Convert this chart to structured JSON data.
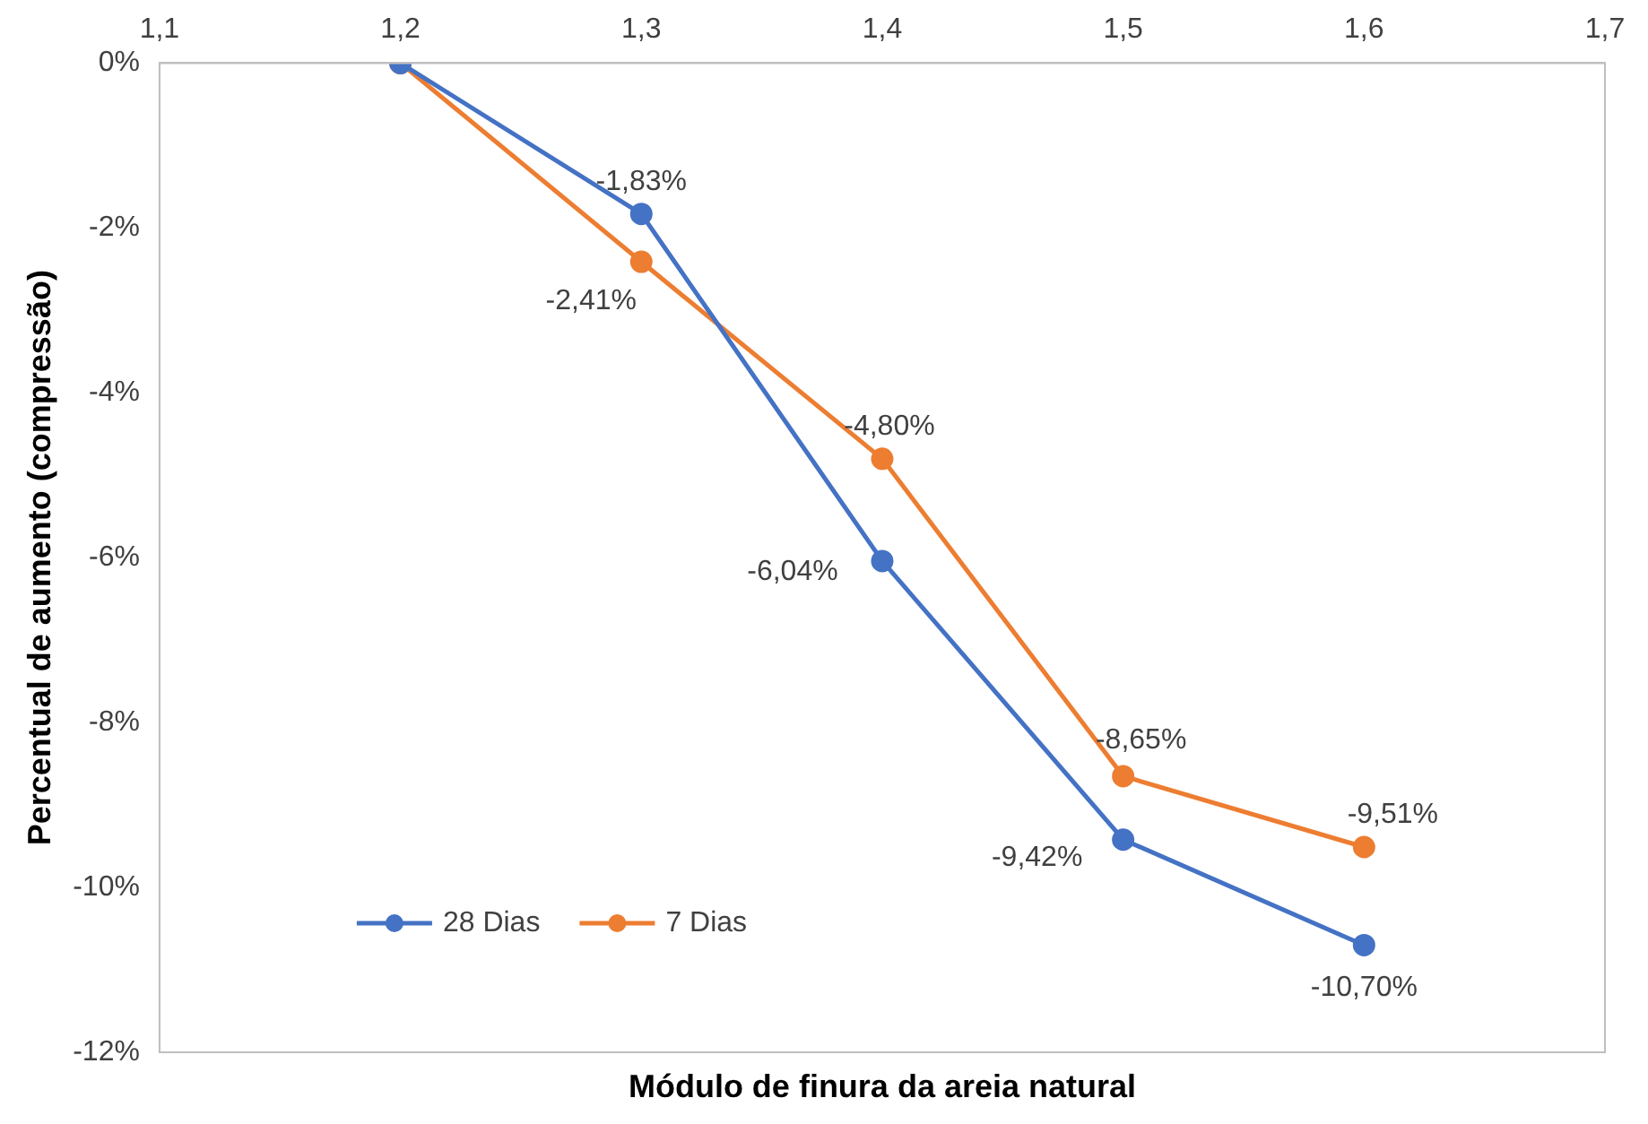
{
  "chart_data": {
    "type": "line",
    "xlabel": "Módulo de finura da areia natural",
    "ylabel": "Percentual de aumento (compressão)",
    "x": [
      1.2,
      1.3,
      1.4,
      1.5,
      1.6
    ],
    "series": [
      {
        "name": "28 Dias",
        "color": "#4472c4",
        "values": [
          0,
          -1.83,
          -6.04,
          -9.42,
          -10.7
        ],
        "value_labels": [
          null,
          "-1,83%",
          "-6,04%",
          "-9,42%",
          "-10,70%"
        ]
      },
      {
        "name": "7 Dias",
        "color": "#ed7d31",
        "values": [
          0,
          -2.41,
          -4.8,
          -8.65,
          -9.51
        ],
        "value_labels": [
          null,
          "-2,41%",
          "-4,80%",
          "-8,65%",
          "-9,51%"
        ]
      }
    ],
    "xlim": [
      1.1,
      1.7
    ],
    "xticks": [
      {
        "value": 1.1,
        "label": "1,1"
      },
      {
        "value": 1.2,
        "label": "1,2"
      },
      {
        "value": 1.3,
        "label": "1,3"
      },
      {
        "value": 1.4,
        "label": "1,4"
      },
      {
        "value": 1.5,
        "label": "1,5"
      },
      {
        "value": 1.6,
        "label": "1,6"
      },
      {
        "value": 1.7,
        "label": "1,7"
      }
    ],
    "ylim": [
      -12,
      0
    ],
    "yticks": [
      {
        "value": 0,
        "label": "0%"
      },
      {
        "value": -2,
        "label": "-2%"
      },
      {
        "value": -4,
        "label": "-4%"
      },
      {
        "value": -6,
        "label": "-6%"
      },
      {
        "value": -8,
        "label": "-8%"
      },
      {
        "value": -10,
        "label": "-10%"
      },
      {
        "value": -12,
        "label": "-12%"
      }
    ],
    "grid": false,
    "legend": "bottom left",
    "marker": "circle",
    "line_style": "solid"
  }
}
